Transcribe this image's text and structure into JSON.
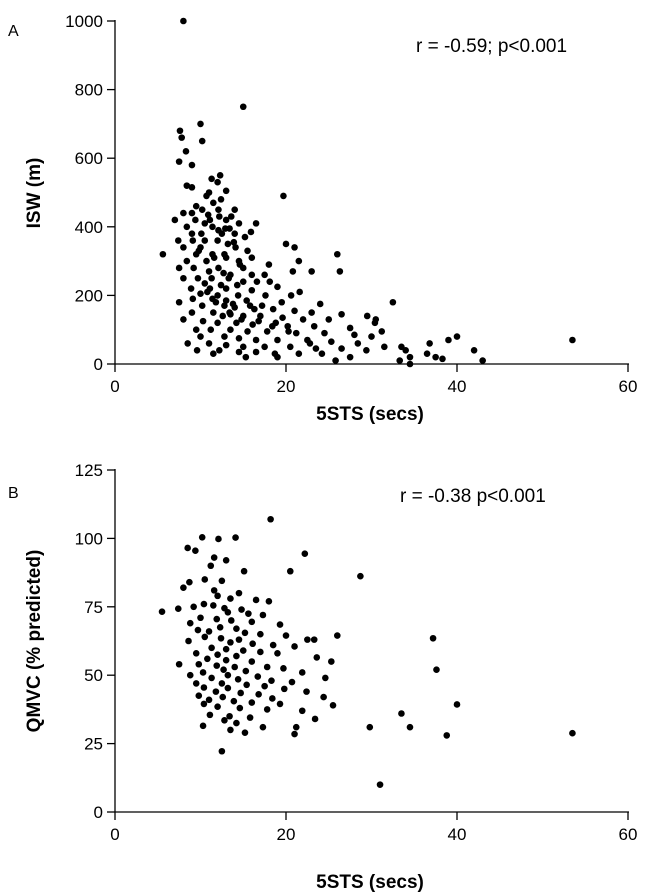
{
  "chart_data": [
    {
      "type": "scatter",
      "panel_label": "A",
      "xlabel": "5STS (secs)",
      "ylabel": "ISW (m)",
      "annotation": "r = -0.59; p<0.001",
      "xlim": [
        0,
        60
      ],
      "ylim": [
        0,
        1000
      ],
      "x_ticks": [
        0,
        20,
        40,
        60
      ],
      "y_ticks": [
        0,
        200,
        400,
        600,
        800,
        1000
      ],
      "grid": false,
      "marker_color": "#000000",
      "points": [
        [
          8,
          1000
        ],
        [
          15,
          750
        ],
        [
          10,
          700
        ],
        [
          7.6,
          680
        ],
        [
          7.8,
          660
        ],
        [
          10.2,
          650
        ],
        [
          8.3,
          620
        ],
        [
          7.5,
          590
        ],
        [
          9,
          580
        ],
        [
          12.3,
          550
        ],
        [
          11.3,
          540
        ],
        [
          12,
          530
        ],
        [
          8.4,
          520
        ],
        [
          9,
          515
        ],
        [
          13,
          505
        ],
        [
          11,
          500
        ],
        [
          10.7,
          490
        ],
        [
          19.7,
          490
        ],
        [
          12.4,
          480
        ],
        [
          11.5,
          470
        ],
        [
          9.5,
          460
        ],
        [
          10.2,
          450
        ],
        [
          12.1,
          450
        ],
        [
          14,
          450
        ],
        [
          8,
          440
        ],
        [
          9,
          440
        ],
        [
          12.2,
          430
        ],
        [
          13.6,
          430
        ],
        [
          7,
          420
        ],
        [
          9.4,
          420
        ],
        [
          11.1,
          420
        ],
        [
          13,
          420
        ],
        [
          10.5,
          410
        ],
        [
          14.5,
          410
        ],
        [
          16.5,
          410
        ],
        [
          8.4,
          400
        ],
        [
          11.4,
          400
        ],
        [
          13.4,
          395
        ],
        [
          12.1,
          390
        ],
        [
          9,
          380
        ],
        [
          10.1,
          380
        ],
        [
          12.5,
          380
        ],
        [
          14,
          380
        ],
        [
          15.2,
          370
        ],
        [
          7.4,
          360
        ],
        [
          9.1,
          360
        ],
        [
          10.5,
          360
        ],
        [
          12,
          360
        ],
        [
          13.2,
          350
        ],
        [
          20,
          350
        ],
        [
          21,
          340
        ],
        [
          8,
          340
        ],
        [
          10,
          340
        ],
        [
          14.1,
          340
        ],
        [
          15.5,
          330
        ],
        [
          9.5,
          320
        ],
        [
          11.4,
          320
        ],
        [
          12.8,
          320
        ],
        [
          26,
          320
        ],
        [
          16,
          310
        ],
        [
          13,
          310
        ],
        [
          8.4,
          300
        ],
        [
          10.7,
          300
        ],
        [
          14.5,
          300
        ],
        [
          21.5,
          300
        ],
        [
          18,
          290
        ],
        [
          7.5,
          280
        ],
        [
          9.2,
          280
        ],
        [
          12.1,
          280
        ],
        [
          15,
          280
        ],
        [
          26.3,
          270
        ],
        [
          20.8,
          270
        ],
        [
          23,
          270
        ],
        [
          11,
          270
        ],
        [
          13.5,
          260
        ],
        [
          16,
          260
        ],
        [
          17.5,
          260
        ],
        [
          5.6,
          320
        ],
        [
          8,
          250
        ],
        [
          9.7,
          250
        ],
        [
          11.3,
          250
        ],
        [
          13.3,
          250
        ],
        [
          15,
          240
        ],
        [
          16.6,
          240
        ],
        [
          18.1,
          240
        ],
        [
          10.5,
          235
        ],
        [
          12.4,
          230
        ],
        [
          14.3,
          230
        ],
        [
          19,
          225
        ],
        [
          8.9,
          220
        ],
        [
          11.1,
          220
        ],
        [
          13,
          220
        ],
        [
          16,
          215
        ],
        [
          21.6,
          210
        ],
        [
          10,
          205
        ],
        [
          12,
          200
        ],
        [
          14.4,
          200
        ],
        [
          17.6,
          200
        ],
        [
          20.6,
          200
        ],
        [
          9.1,
          190
        ],
        [
          11.4,
          190
        ],
        [
          13,
          185
        ],
        [
          15.4,
          185
        ],
        [
          7.5,
          180
        ],
        [
          19.5,
          180
        ],
        [
          32.5,
          180
        ],
        [
          24,
          175
        ],
        [
          10.2,
          170
        ],
        [
          12.8,
          170
        ],
        [
          14,
          165
        ],
        [
          16.3,
          160
        ],
        [
          18.5,
          160
        ],
        [
          21,
          155
        ],
        [
          23,
          150
        ],
        [
          26.5,
          145
        ],
        [
          9,
          150
        ],
        [
          11.5,
          150
        ],
        [
          13.5,
          145
        ],
        [
          15,
          140
        ],
        [
          17,
          140
        ],
        [
          19.6,
          135
        ],
        [
          22,
          130
        ],
        [
          25,
          130
        ],
        [
          29.5,
          140
        ],
        [
          30.5,
          130
        ],
        [
          8,
          130
        ],
        [
          10.3,
          125
        ],
        [
          12,
          120
        ],
        [
          14.2,
          120
        ],
        [
          16.1,
          115
        ],
        [
          18.4,
          110
        ],
        [
          20.2,
          110
        ],
        [
          23.3,
          110
        ],
        [
          27.5,
          105
        ],
        [
          9.5,
          100
        ],
        [
          11.2,
          100
        ],
        [
          13.5,
          100
        ],
        [
          15.5,
          95
        ],
        [
          17.8,
          95
        ],
        [
          21.2,
          90
        ],
        [
          24.5,
          90
        ],
        [
          28,
          85
        ],
        [
          30,
          80
        ],
        [
          10,
          80
        ],
        [
          12.8,
          80
        ],
        [
          14.5,
          75
        ],
        [
          16.5,
          70
        ],
        [
          19,
          70
        ],
        [
          22.5,
          70
        ],
        [
          25.3,
          65
        ],
        [
          40,
          80
        ],
        [
          39,
          70
        ],
        [
          36.8,
          60
        ],
        [
          53.5,
          70
        ],
        [
          33.5,
          50
        ],
        [
          31.5,
          50
        ],
        [
          8.5,
          60
        ],
        [
          11,
          60
        ],
        [
          13,
          55
        ],
        [
          15,
          50
        ],
        [
          17.5,
          50
        ],
        [
          20.5,
          50
        ],
        [
          23.5,
          45
        ],
        [
          26.5,
          45
        ],
        [
          9.6,
          40
        ],
        [
          12.2,
          40
        ],
        [
          14.5,
          35
        ],
        [
          16.5,
          35
        ],
        [
          18.7,
          30
        ],
        [
          21.5,
          30
        ],
        [
          29.4,
          40
        ],
        [
          34,
          40
        ],
        [
          42,
          40
        ],
        [
          36.5,
          30
        ],
        [
          37.5,
          20
        ],
        [
          11.5,
          30
        ],
        [
          15.3,
          20
        ],
        [
          19,
          20
        ],
        [
          27.5,
          20
        ],
        [
          34.5,
          20
        ],
        [
          38.3,
          15
        ],
        [
          43,
          10
        ],
        [
          25.8,
          10
        ],
        [
          33.3,
          10
        ],
        [
          34.5,
          0
        ],
        [
          13.4,
          150
        ],
        [
          12.6,
          140
        ],
        [
          14.8,
          130
        ],
        [
          16.8,
          125
        ],
        [
          11.8,
          180
        ],
        [
          13.8,
          175
        ],
        [
          15.8,
          170
        ],
        [
          10.8,
          210
        ],
        [
          12.7,
          265
        ],
        [
          14.6,
          290
        ],
        [
          11.6,
          310
        ],
        [
          9.8,
          330
        ],
        [
          13.9,
          355
        ],
        [
          12.9,
          395
        ],
        [
          15.9,
          385
        ],
        [
          10.9,
          435
        ],
        [
          17.2,
          170
        ],
        [
          18.8,
          120
        ],
        [
          20.3,
          95
        ],
        [
          22.8,
          60
        ],
        [
          24.2,
          30
        ],
        [
          30.4,
          120
        ],
        [
          31.2,
          95
        ],
        [
          28.4,
          60
        ]
      ]
    },
    {
      "type": "scatter",
      "panel_label": "B",
      "xlabel": "5STS (secs)",
      "ylabel": "QMVC (% predicted)",
      "annotation": "r = -0.38 p<0.001",
      "xlim": [
        0,
        60
      ],
      "ylim": [
        0,
        125
      ],
      "x_ticks": [
        0,
        20,
        40,
        60
      ],
      "y_ticks": [
        0,
        25,
        50,
        75,
        100,
        125
      ],
      "grid": false,
      "marker_color": "#000000",
      "points": [
        [
          18.2,
          107
        ],
        [
          10.2,
          100.4
        ],
        [
          12.1,
          99.8
        ],
        [
          14.1,
          100.3
        ],
        [
          8.5,
          96.5
        ],
        [
          9.4,
          95.5
        ],
        [
          22.2,
          94.4
        ],
        [
          11.6,
          93
        ],
        [
          13,
          92
        ],
        [
          11.2,
          90
        ],
        [
          15.1,
          88
        ],
        [
          20.5,
          88
        ],
        [
          28.7,
          86.2
        ],
        [
          10.5,
          85
        ],
        [
          12.5,
          84.5
        ],
        [
          8.7,
          84
        ],
        [
          8,
          82
        ],
        [
          11.6,
          81
        ],
        [
          14.5,
          80
        ],
        [
          12,
          79
        ],
        [
          13.5,
          78
        ],
        [
          16.5,
          77.5
        ],
        [
          18,
          77
        ],
        [
          10.4,
          76
        ],
        [
          11.5,
          75.5
        ],
        [
          9.2,
          75
        ],
        [
          12.8,
          74.5
        ],
        [
          14.8,
          74
        ],
        [
          7.4,
          74.3
        ],
        [
          5.5,
          73.2
        ],
        [
          13.2,
          73
        ],
        [
          15.6,
          72.5
        ],
        [
          17.3,
          72
        ],
        [
          10,
          71
        ],
        [
          11.9,
          70.5
        ],
        [
          13.6,
          70
        ],
        [
          16,
          69.5
        ],
        [
          8.8,
          69
        ],
        [
          19.3,
          68.5
        ],
        [
          12.3,
          67.5
        ],
        [
          14.2,
          67
        ],
        [
          9.7,
          66.5
        ],
        [
          11,
          66
        ],
        [
          15.2,
          65.5
        ],
        [
          17,
          65
        ],
        [
          20,
          64.5
        ],
        [
          26,
          64.5
        ],
        [
          37.2,
          63.5
        ],
        [
          10.5,
          64
        ],
        [
          12.4,
          63.5
        ],
        [
          14.5,
          63
        ],
        [
          22.5,
          63
        ],
        [
          23.3,
          63
        ],
        [
          8.6,
          62.5
        ],
        [
          13.5,
          62
        ],
        [
          16.1,
          61.5
        ],
        [
          18.5,
          61
        ],
        [
          21,
          60.5
        ],
        [
          11.3,
          60
        ],
        [
          13,
          59.5
        ],
        [
          15,
          59
        ],
        [
          17,
          58.5
        ],
        [
          19,
          58
        ],
        [
          9.5,
          58
        ],
        [
          12,
          57.5
        ],
        [
          14.2,
          57
        ],
        [
          23.6,
          56.5
        ],
        [
          10.8,
          56
        ],
        [
          13,
          55.5
        ],
        [
          16,
          55
        ],
        [
          25.3,
          55
        ],
        [
          7.5,
          54
        ],
        [
          9.8,
          54
        ],
        [
          11.9,
          53.5
        ],
        [
          14,
          53
        ],
        [
          17.8,
          53
        ],
        [
          19.7,
          52.5
        ],
        [
          37.6,
          52
        ],
        [
          12.7,
          52
        ],
        [
          15.3,
          51.5
        ],
        [
          21.9,
          51
        ],
        [
          10.3,
          51
        ],
        [
          8.8,
          50
        ],
        [
          13.2,
          50
        ],
        [
          16.7,
          49.5
        ],
        [
          24.6,
          49
        ],
        [
          11.3,
          49
        ],
        [
          14.4,
          48.5
        ],
        [
          18.3,
          48
        ],
        [
          20.7,
          47.5
        ],
        [
          9.5,
          47
        ],
        [
          12.5,
          47
        ],
        [
          15.4,
          46.5
        ],
        [
          17.5,
          46
        ],
        [
          10.4,
          45.5
        ],
        [
          13.2,
          45.3
        ],
        [
          19.8,
          45
        ],
        [
          22.4,
          44
        ],
        [
          11.8,
          44
        ],
        [
          14.7,
          43.5
        ],
        [
          16.8,
          43
        ],
        [
          9.8,
          42.5
        ],
        [
          12.6,
          42
        ],
        [
          18.4,
          41.5
        ],
        [
          24.4,
          42
        ],
        [
          11,
          41
        ],
        [
          13.9,
          40.5
        ],
        [
          16,
          40
        ],
        [
          10.4,
          39.5
        ],
        [
          19.3,
          39.5
        ],
        [
          25.5,
          39
        ],
        [
          40,
          39.3
        ],
        [
          12,
          38.5
        ],
        [
          14.6,
          38
        ],
        [
          17.8,
          37.5
        ],
        [
          21.9,
          37
        ],
        [
          33.5,
          36
        ],
        [
          11.1,
          35.5
        ],
        [
          13.4,
          35
        ],
        [
          15.8,
          34.5
        ],
        [
          23.4,
          34
        ],
        [
          12.8,
          33.5
        ],
        [
          14.2,
          32.5
        ],
        [
          10.3,
          31.5
        ],
        [
          17.3,
          31
        ],
        [
          21.2,
          31
        ],
        [
          29.8,
          31
        ],
        [
          34.5,
          31
        ],
        [
          13.5,
          30
        ],
        [
          15.2,
          29
        ],
        [
          21,
          28.5
        ],
        [
          38.8,
          28
        ],
        [
          53.5,
          28.8
        ],
        [
          12.5,
          22.2
        ],
        [
          31,
          10
        ]
      ]
    }
  ]
}
